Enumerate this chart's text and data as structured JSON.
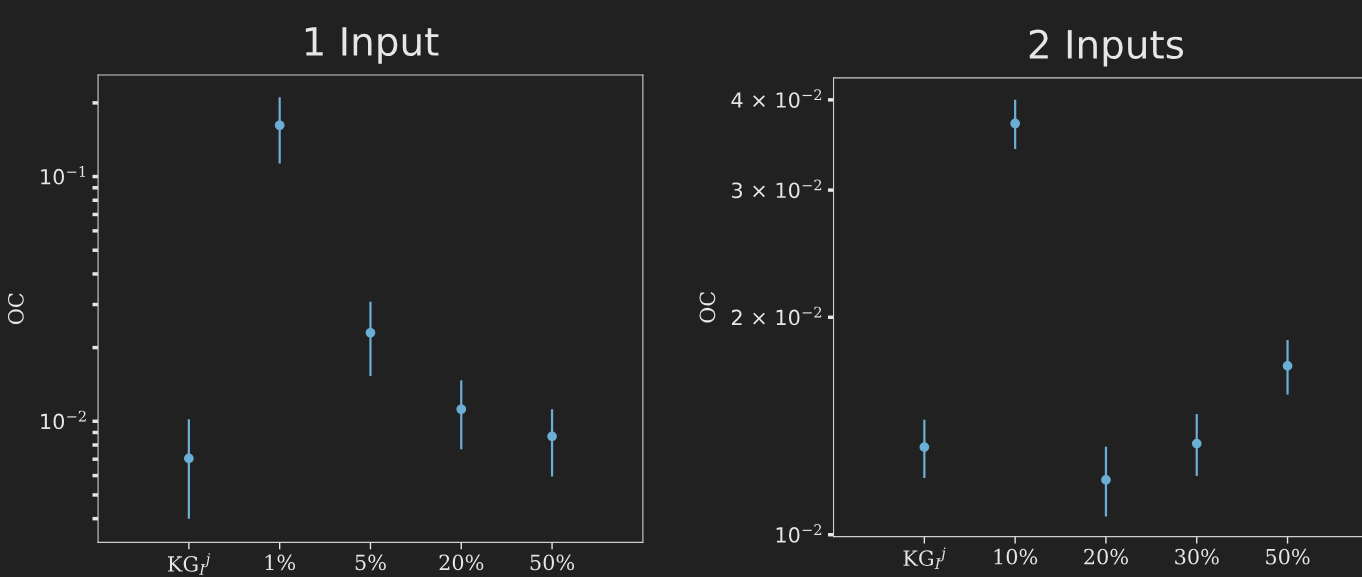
{
  "chart_data": [
    {
      "type": "scatter",
      "title": "1 Input",
      "ylabel": "OC",
      "log": "y",
      "marker": "circle",
      "grid": false,
      "legend": false,
      "categories": [
        "KG$_{I}$$^{j}$",
        "1%",
        "5%",
        "20%",
        "50%"
      ],
      "series": [
        {
          "color": "#6baed6",
          "values": [
            0.00705,
            0.162,
            0.023,
            0.0112,
            0.00868
          ],
          "errors": [
            [
              0.004,
              0.0102
            ],
            [
              0.113,
              0.211
            ],
            [
              0.0153,
              0.0308
            ],
            [
              0.00768,
              0.0147
            ],
            [
              0.00595,
              0.0112
            ]
          ]
        }
      ],
      "ylim": [
        0.0032,
        0.26
      ],
      "yticks": [
        {
          "value": 0.004,
          "label": null
        },
        {
          "value": 0.005,
          "label": null
        },
        {
          "value": 0.006,
          "label": null
        },
        {
          "value": 0.007,
          "label": null
        },
        {
          "value": 0.008,
          "label": null
        },
        {
          "value": 0.009,
          "label": null
        },
        {
          "value": 0.01,
          "label": "10$^{−2}$"
        },
        {
          "value": 0.02,
          "label": null
        },
        {
          "value": 0.03,
          "label": null
        },
        {
          "value": 0.04,
          "label": null
        },
        {
          "value": 0.05,
          "label": null
        },
        {
          "value": 0.06,
          "label": null
        },
        {
          "value": 0.07,
          "label": null
        },
        {
          "value": 0.08,
          "label": null
        },
        {
          "value": 0.09,
          "label": null
        },
        {
          "value": 0.1,
          "label": "10$^{−1}$"
        },
        {
          "value": 0.2,
          "label": null
        }
      ]
    },
    {
      "type": "scatter",
      "title": "2 Inputs",
      "ylabel": "OC",
      "log": "y",
      "marker": "circle",
      "grid": false,
      "legend": false,
      "categories": [
        "KG$_{I}$$^{j}$",
        "10%",
        "20%",
        "30%",
        "50%"
      ],
      "series": [
        {
          "color": "#6baed6",
          "values": [
            0.01322,
            0.0371,
            0.01191,
            0.01337,
            0.01713
          ],
          "errors": [
            [
              0.01198,
              0.01443
            ],
            [
              0.0342,
              0.04
            ],
            [
              0.0106,
              0.01324
            ],
            [
              0.01206,
              0.01469
            ],
            [
              0.01563,
              0.0186
            ]
          ]
        }
      ],
      "ylim": [
        0.00994,
        0.0429
      ],
      "yticks": [
        {
          "value": 0.01,
          "label": "10$^{−2}$"
        },
        {
          "value": 0.02,
          "label": "2 × 10$^{−2}$"
        },
        {
          "value": 0.03,
          "label": "3 × 10$^{−2}$"
        },
        {
          "value": 0.04,
          "label": "4 × 10$^{−2}$"
        }
      ]
    }
  ]
}
